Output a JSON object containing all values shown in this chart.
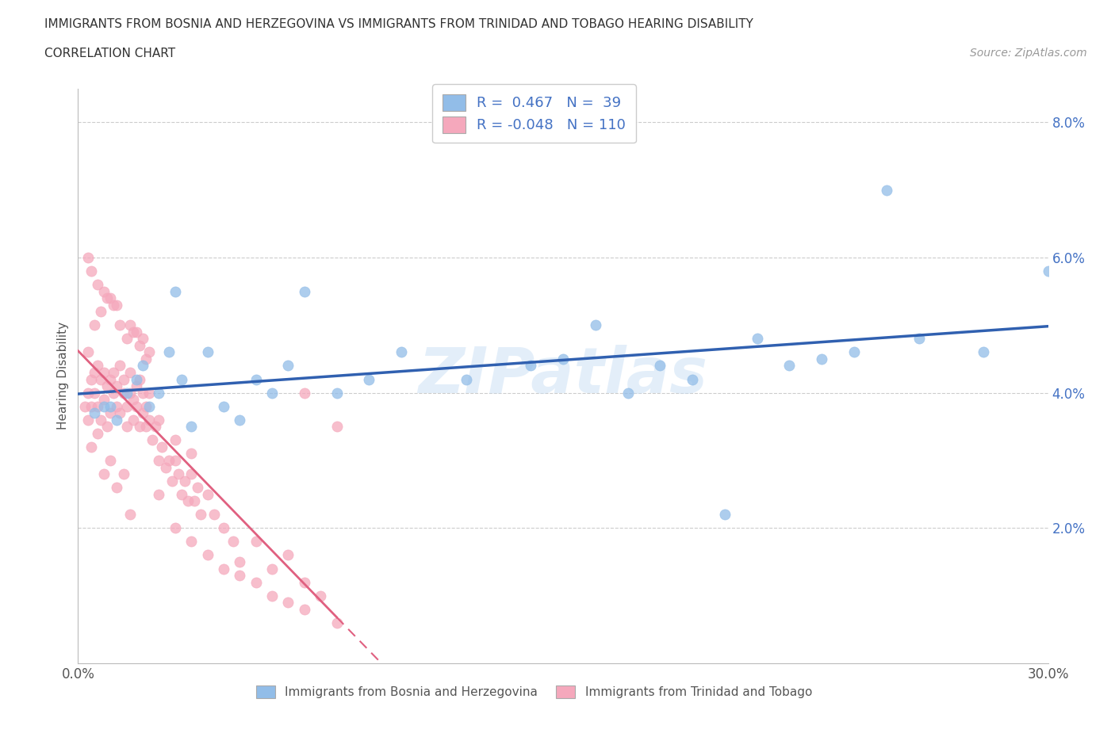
{
  "title_line1": "IMMIGRANTS FROM BOSNIA AND HERZEGOVINA VS IMMIGRANTS FROM TRINIDAD AND TOBAGO HEARING DISABILITY",
  "title_line2": "CORRELATION CHART",
  "source": "Source: ZipAtlas.com",
  "ylabel": "Hearing Disability",
  "xlim": [
    0.0,
    0.3
  ],
  "ylim": [
    0.0,
    0.085
  ],
  "xtick_positions": [
    0.0,
    0.05,
    0.1,
    0.15,
    0.2,
    0.25,
    0.3
  ],
  "xticklabels": [
    "0.0%",
    "",
    "",
    "",
    "",
    "",
    "30.0%"
  ],
  "ytick_positions": [
    0.02,
    0.04,
    0.06,
    0.08
  ],
  "yticklabels": [
    "2.0%",
    "4.0%",
    "6.0%",
    "8.0%"
  ],
  "bosnia_color": "#92bde8",
  "trinidad_color": "#f5a8bc",
  "bosnia_line_color": "#3060b0",
  "trinidad_line_color": "#e06080",
  "R_bosnia": 0.467,
  "N_bosnia": 39,
  "R_trinidad": -0.048,
  "N_trinidad": 110,
  "legend_label_bosnia": "Immigrants from Bosnia and Herzegovina",
  "legend_label_trinidad": "Immigrants from Trinidad and Tobago",
  "watermark": "ZIPatlas",
  "background_color": "#ffffff",
  "grid_color": "#cccccc",
  "bosnia_x": [
    0.005,
    0.008,
    0.01,
    0.012,
    0.015,
    0.018,
    0.02,
    0.022,
    0.025,
    0.028,
    0.03,
    0.032,
    0.035,
    0.04,
    0.045,
    0.05,
    0.055,
    0.06,
    0.065,
    0.07,
    0.08,
    0.09,
    0.1,
    0.12,
    0.14,
    0.16,
    0.18,
    0.2,
    0.22,
    0.24,
    0.26,
    0.28,
    0.3,
    0.15,
    0.17,
    0.19,
    0.21,
    0.23,
    0.25
  ],
  "bosnia_y": [
    0.037,
    0.038,
    0.038,
    0.036,
    0.04,
    0.042,
    0.044,
    0.038,
    0.04,
    0.046,
    0.055,
    0.042,
    0.035,
    0.046,
    0.038,
    0.036,
    0.042,
    0.04,
    0.044,
    0.055,
    0.04,
    0.042,
    0.046,
    0.042,
    0.044,
    0.05,
    0.044,
    0.022,
    0.044,
    0.046,
    0.048,
    0.046,
    0.058,
    0.045,
    0.04,
    0.042,
    0.048,
    0.045,
    0.07
  ],
  "trinidad_x": [
    0.002,
    0.003,
    0.003,
    0.004,
    0.004,
    0.005,
    0.005,
    0.006,
    0.006,
    0.007,
    0.007,
    0.008,
    0.008,
    0.009,
    0.009,
    0.01,
    0.01,
    0.011,
    0.011,
    0.012,
    0.012,
    0.013,
    0.013,
    0.014,
    0.014,
    0.015,
    0.015,
    0.016,
    0.016,
    0.017,
    0.017,
    0.018,
    0.018,
    0.019,
    0.019,
    0.02,
    0.02,
    0.021,
    0.021,
    0.022,
    0.022,
    0.023,
    0.024,
    0.025,
    0.025,
    0.026,
    0.027,
    0.028,
    0.029,
    0.03,
    0.03,
    0.031,
    0.032,
    0.033,
    0.034,
    0.035,
    0.035,
    0.036,
    0.037,
    0.038,
    0.04,
    0.042,
    0.045,
    0.048,
    0.05,
    0.055,
    0.06,
    0.065,
    0.07,
    0.075,
    0.003,
    0.005,
    0.007,
    0.009,
    0.011,
    0.013,
    0.015,
    0.017,
    0.019,
    0.021,
    0.003,
    0.004,
    0.006,
    0.008,
    0.01,
    0.012,
    0.016,
    0.018,
    0.02,
    0.022,
    0.004,
    0.006,
    0.008,
    0.01,
    0.012,
    0.014,
    0.016,
    0.025,
    0.03,
    0.035,
    0.04,
    0.045,
    0.05,
    0.055,
    0.06,
    0.065,
    0.07,
    0.08,
    0.07,
    0.08
  ],
  "trinidad_y": [
    0.038,
    0.036,
    0.04,
    0.042,
    0.038,
    0.04,
    0.043,
    0.038,
    0.044,
    0.042,
    0.036,
    0.039,
    0.043,
    0.035,
    0.041,
    0.037,
    0.042,
    0.04,
    0.043,
    0.038,
    0.041,
    0.044,
    0.037,
    0.04,
    0.042,
    0.035,
    0.038,
    0.04,
    0.043,
    0.036,
    0.039,
    0.038,
    0.041,
    0.035,
    0.042,
    0.037,
    0.04,
    0.035,
    0.038,
    0.036,
    0.04,
    0.033,
    0.035,
    0.03,
    0.036,
    0.032,
    0.029,
    0.03,
    0.027,
    0.03,
    0.033,
    0.028,
    0.025,
    0.027,
    0.024,
    0.028,
    0.031,
    0.024,
    0.026,
    0.022,
    0.025,
    0.022,
    0.02,
    0.018,
    0.015,
    0.018,
    0.014,
    0.016,
    0.012,
    0.01,
    0.046,
    0.05,
    0.052,
    0.054,
    0.053,
    0.05,
    0.048,
    0.049,
    0.047,
    0.045,
    0.06,
    0.058,
    0.056,
    0.055,
    0.054,
    0.053,
    0.05,
    0.049,
    0.048,
    0.046,
    0.032,
    0.034,
    0.028,
    0.03,
    0.026,
    0.028,
    0.022,
    0.025,
    0.02,
    0.018,
    0.016,
    0.014,
    0.013,
    0.012,
    0.01,
    0.009,
    0.008,
    0.006,
    0.04,
    0.035
  ]
}
